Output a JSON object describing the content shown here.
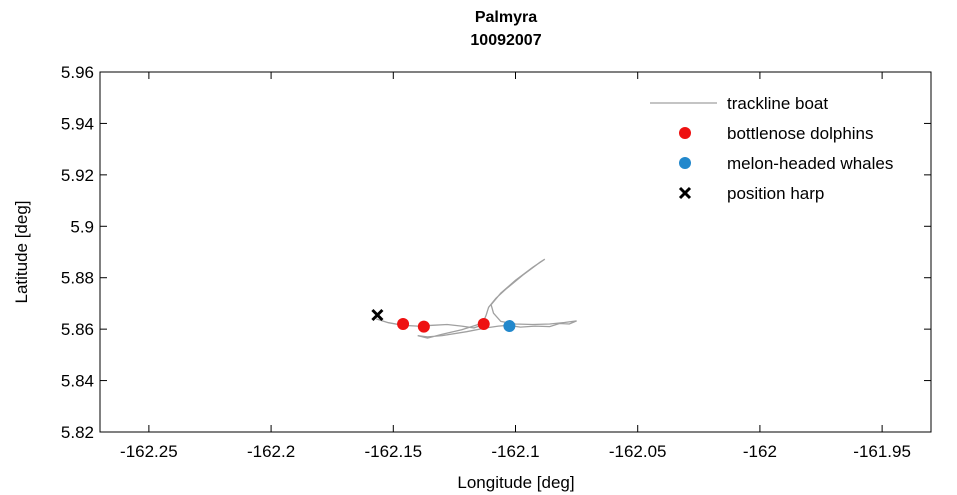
{
  "chart_data": {
    "type": "scatter",
    "title": "Palmyra",
    "subtitle": "10092007",
    "xlabel": "Longitude [deg]",
    "ylabel": "Latitude [deg]",
    "xlim": [
      -162.27,
      -161.93
    ],
    "ylim": [
      5.82,
      5.96
    ],
    "xticks": [
      -162.25,
      -162.2,
      -162.15,
      -162.1,
      -162.05,
      -162,
      -161.95
    ],
    "xtick_labels": [
      "-162.25",
      "-162.2",
      "-162.15",
      "-162.1",
      "-162.05",
      "-162",
      "-161.95"
    ],
    "yticks": [
      5.82,
      5.84,
      5.86,
      5.88,
      5.9,
      5.92,
      5.94,
      5.96
    ],
    "ytick_labels": [
      "5.82",
      "5.84",
      "5.86",
      "5.88",
      "5.9",
      "5.92",
      "5.94",
      "5.96"
    ],
    "grid": false,
    "legend_position": "top-right",
    "series": [
      {
        "name": "trackline boat",
        "kind": "line",
        "color": "#a0a0a0",
        "points": [
          [
            -162.157,
            5.864
          ],
          [
            -162.152,
            5.8625
          ],
          [
            -162.146,
            5.8615
          ],
          [
            -162.14,
            5.8612
          ],
          [
            -162.134,
            5.8615
          ],
          [
            -162.128,
            5.8618
          ],
          [
            -162.122,
            5.8612
          ],
          [
            -162.117,
            5.8605
          ],
          [
            -162.113,
            5.8618
          ],
          [
            -162.112,
            5.8632
          ],
          [
            -162.114,
            5.8622
          ],
          [
            -162.122,
            5.8598
          ],
          [
            -162.13,
            5.858
          ],
          [
            -162.136,
            5.8565
          ],
          [
            -162.14,
            5.8575
          ],
          [
            -162.136,
            5.857
          ],
          [
            -162.13,
            5.8575
          ],
          [
            -162.12,
            5.859
          ],
          [
            -162.112,
            5.8605
          ],
          [
            -162.107,
            5.8612
          ],
          [
            -162.103,
            5.8615
          ],
          [
            -162.098,
            5.8608
          ],
          [
            -162.092,
            5.8612
          ],
          [
            -162.086,
            5.861
          ],
          [
            -162.082,
            5.8622
          ],
          [
            -162.078,
            5.862
          ],
          [
            -162.075,
            5.8632
          ],
          [
            -162.08,
            5.8626
          ],
          [
            -162.086,
            5.862
          ],
          [
            -162.093,
            5.8618
          ],
          [
            -162.1,
            5.862
          ],
          [
            -162.106,
            5.863
          ],
          [
            -162.109,
            5.8662
          ],
          [
            -162.11,
            5.8695
          ],
          [
            -162.106,
            5.874
          ],
          [
            -162.1,
            5.879
          ],
          [
            -162.093,
            5.884
          ],
          [
            -162.088,
            5.8872
          ],
          [
            -162.09,
            5.886
          ],
          [
            -162.097,
            5.881
          ],
          [
            -162.104,
            5.8755
          ],
          [
            -162.108,
            5.872
          ],
          [
            -162.111,
            5.8685
          ],
          [
            -162.112,
            5.8655
          ],
          [
            -162.113,
            5.8632
          ]
        ]
      },
      {
        "name": "bottlenose dolphins",
        "kind": "marker",
        "marker": "circle",
        "color": "#ee1111",
        "points": [
          [
            -162.146,
            5.862
          ],
          [
            -162.1375,
            5.861
          ],
          [
            -162.113,
            5.862
          ]
        ]
      },
      {
        "name": "melon-headed whales",
        "kind": "marker",
        "marker": "circle",
        "color": "#2288cc",
        "points": [
          [
            -162.1025,
            5.8612
          ]
        ]
      },
      {
        "name": "position harp",
        "kind": "marker",
        "marker": "x",
        "color": "#000000",
        "points": [
          [
            -162.1565,
            5.8655
          ]
        ]
      }
    ]
  }
}
